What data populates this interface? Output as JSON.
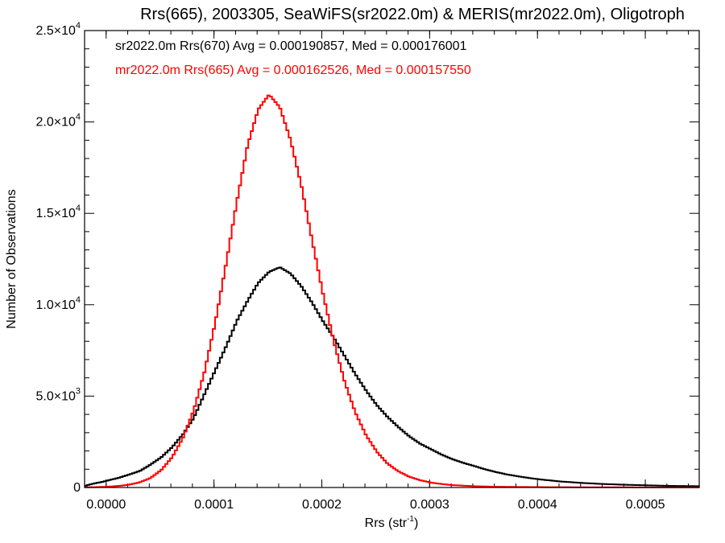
{
  "chart_data": {
    "type": "histogram-step",
    "title": "Rrs(665), 2003305, SeaWiFS(sr2022.0m) & MERIS(mr2022.0m), Oligotroph",
    "xlabel": "Rrs (str",
    "xlabel_sup": "-1",
    "xlabel_close": ")",
    "ylabel": "Number of Observations",
    "xlim": [
      -2e-05,
      0.00055
    ],
    "ylim": [
      0,
      25000
    ],
    "x_ticks": [
      {
        "value": 0.0,
        "label": "0.0000"
      },
      {
        "value": 0.0001,
        "label": "0.0001"
      },
      {
        "value": 0.0002,
        "label": "0.0002"
      },
      {
        "value": 0.0003,
        "label": "0.0003"
      },
      {
        "value": 0.0004,
        "label": "0.0004"
      },
      {
        "value": 0.0005,
        "label": "0.0005"
      }
    ],
    "y_ticks": [
      {
        "value": 0,
        "mant": "0",
        "exp": ""
      },
      {
        "value": 5000,
        "mant": "5.0×10",
        "exp": "3"
      },
      {
        "value": 10000,
        "mant": "1.0×10",
        "exp": "4"
      },
      {
        "value": 15000,
        "mant": "1.5×10",
        "exp": "4"
      },
      {
        "value": 20000,
        "mant": "2.0×10",
        "exp": "4"
      },
      {
        "value": 25000,
        "mant": "2.5×10",
        "exp": "4"
      }
    ],
    "legend_position": "top-left",
    "series": [
      {
        "name": "sr2022.0m Rrs(670) Avg = 0.000190857, Med = 0.000176001",
        "color": "#000000",
        "points": [
          [
            -2e-05,
            100
          ],
          [
            -1.5e-05,
            180
          ],
          [
            -1e-05,
            250
          ],
          [
            -5e-06,
            300
          ],
          [
            0.0,
            380
          ],
          [
            1e-05,
            520
          ],
          [
            2e-05,
            700
          ],
          [
            3e-05,
            900
          ],
          [
            4e-05,
            1250
          ],
          [
            5e-05,
            1650
          ],
          [
            6e-05,
            2200
          ],
          [
            7e-05,
            2900
          ],
          [
            8e-05,
            3800
          ],
          [
            9e-05,
            5100
          ],
          [
            0.0001,
            6400
          ],
          [
            0.00011,
            7700
          ],
          [
            0.00012,
            9100
          ],
          [
            0.00013,
            10200
          ],
          [
            0.00014,
            11200
          ],
          [
            0.00015,
            11800
          ],
          [
            0.00016,
            12050
          ],
          [
            0.00017,
            11700
          ],
          [
            0.00018,
            11000
          ],
          [
            0.00019,
            10100
          ],
          [
            0.0002,
            9100
          ],
          [
            0.00021,
            8200
          ],
          [
            0.00022,
            7200
          ],
          [
            0.00023,
            6200
          ],
          [
            0.00024,
            5300
          ],
          [
            0.00025,
            4500
          ],
          [
            0.00026,
            3850
          ],
          [
            0.00027,
            3300
          ],
          [
            0.00028,
            2800
          ],
          [
            0.00029,
            2400
          ],
          [
            0.0003,
            2100
          ],
          [
            0.00031,
            1800
          ],
          [
            0.00032,
            1550
          ],
          [
            0.00033,
            1350
          ],
          [
            0.00034,
            1180
          ],
          [
            0.00035,
            1000
          ],
          [
            0.00036,
            850
          ],
          [
            0.00037,
            720
          ],
          [
            0.00038,
            620
          ],
          [
            0.00039,
            530
          ],
          [
            0.0004,
            450
          ],
          [
            0.00042,
            330
          ],
          [
            0.00044,
            250
          ],
          [
            0.00046,
            190
          ],
          [
            0.00048,
            150
          ],
          [
            0.0005,
            120
          ],
          [
            0.00052,
            90
          ],
          [
            0.00055,
            70
          ]
        ]
      },
      {
        "name": "mr2022.0m Rrs(665) Avg = 0.000162526, Med = 0.000157550",
        "color": "#ff0000",
        "points": [
          [
            -2e-05,
            10
          ],
          [
            -1e-05,
            20
          ],
          [
            0.0,
            40
          ],
          [
            1e-05,
            80
          ],
          [
            2e-05,
            150
          ],
          [
            3e-05,
            280
          ],
          [
            4e-05,
            520
          ],
          [
            5e-05,
            950
          ],
          [
            6e-05,
            1650
          ],
          [
            7e-05,
            2700
          ],
          [
            8e-05,
            4200
          ],
          [
            9e-05,
            6300
          ],
          [
            0.0001,
            9000
          ],
          [
            0.00011,
            12200
          ],
          [
            0.00012,
            15600
          ],
          [
            0.00013,
            18700
          ],
          [
            0.00014,
            20700
          ],
          [
            0.00015,
            21500
          ],
          [
            0.00016,
            20800
          ],
          [
            0.00017,
            19000
          ],
          [
            0.00018,
            16500
          ],
          [
            0.00019,
            13500
          ],
          [
            0.0002,
            10600
          ],
          [
            0.00021,
            8000
          ],
          [
            0.00022,
            5800
          ],
          [
            0.00023,
            4100
          ],
          [
            0.00024,
            2850
          ],
          [
            0.00025,
            1950
          ],
          [
            0.00026,
            1300
          ],
          [
            0.00027,
            880
          ],
          [
            0.00028,
            590
          ],
          [
            0.00029,
            400
          ],
          [
            0.0003,
            270
          ],
          [
            0.00031,
            190
          ],
          [
            0.00032,
            130
          ],
          [
            0.00034,
            70
          ],
          [
            0.00036,
            40
          ],
          [
            0.0004,
            20
          ],
          [
            0.00045,
            10
          ],
          [
            0.00055,
            5
          ]
        ]
      }
    ]
  }
}
